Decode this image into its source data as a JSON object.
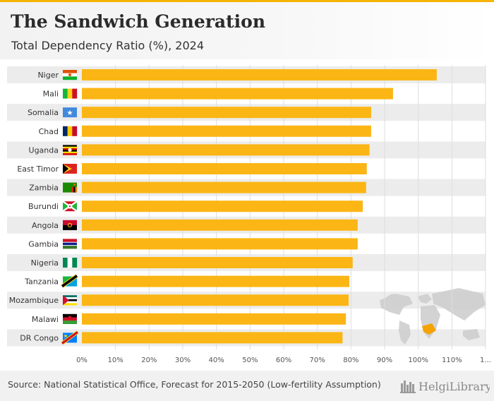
{
  "header": {
    "title": "The Sandwich Generation",
    "subtitle": "Total Dependency Ratio (%), 2024"
  },
  "footer": {
    "source": "Source: National Statistical Office, Forecast for 2015-2050 (Low-fertility Assumption)",
    "brand": "HelgiLibrary."
  },
  "colors": {
    "bar": "#fbb615",
    "band": "#ececec",
    "grid": "#dddddd",
    "map": "#cfcfcf",
    "map_highlight": "#f4a300"
  },
  "chart_data": {
    "type": "bar",
    "orientation": "horizontal",
    "title": "The Sandwich Generation",
    "subtitle": "Total Dependency Ratio (%), 2024",
    "categories": [
      "Niger",
      "Mali",
      "Somalia",
      "Chad",
      "Uganda",
      "East Timor",
      "Zambia",
      "Burundi",
      "Angola",
      "Gambia",
      "Nigeria",
      "Tanzania",
      "Mozambique",
      "Malawi",
      "DR Congo"
    ],
    "values": [
      105.5,
      92.5,
      86.0,
      86.0,
      85.5,
      84.7,
      84.5,
      83.5,
      82.0,
      82.0,
      80.5,
      79.5,
      79.3,
      78.5,
      77.5
    ],
    "xlim": [
      0,
      120
    ],
    "x_ticks": [
      "0%",
      "10%",
      "20%",
      "30%",
      "40%",
      "50%",
      "60%",
      "70%",
      "80%",
      "90%",
      "100%",
      "110%",
      "1..."
    ],
    "grid": true,
    "flags": [
      "niger-flag-icon",
      "mali-flag-icon",
      "somalia-flag-icon",
      "chad-flag-icon",
      "uganda-flag-icon",
      "east-timor-flag-icon",
      "zambia-flag-icon",
      "burundi-flag-icon",
      "angola-flag-icon",
      "gambia-flag-icon",
      "nigeria-flag-icon",
      "tanzania-flag-icon",
      "mozambique-flag-icon",
      "malawi-flag-icon",
      "dr-congo-flag-icon"
    ]
  }
}
